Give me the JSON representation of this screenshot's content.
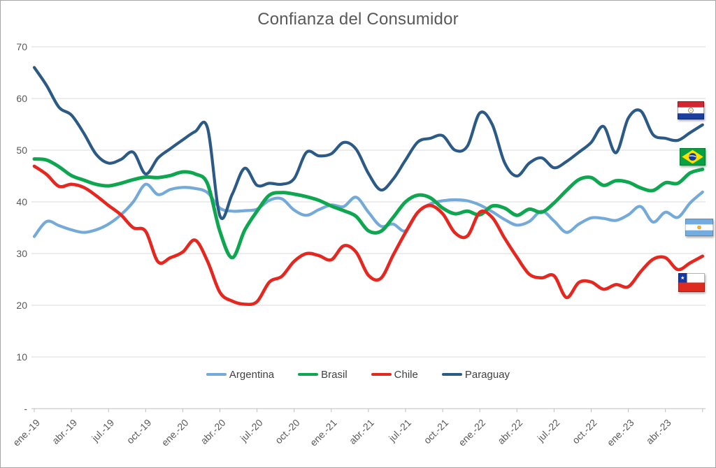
{
  "style": {
    "title_color": "#595959",
    "axis_label_color": "#595959",
    "grid_color": "#d9d9d9",
    "axis_line_color": "#bfbfbf",
    "legend_text_color": "#404040",
    "background": "#ffffff"
  },
  "flags": [
    {
      "name": "paraguay-flag"
    },
    {
      "name": "brazil-flag"
    },
    {
      "name": "argentina-flag"
    },
    {
      "name": "chile-flag"
    }
  ],
  "chart_data": {
    "type": "line",
    "title": "Confianza del Consumidor",
    "smooth": true,
    "grid": "horizontal",
    "legend_position": "bottom-center",
    "x_unit": "month",
    "n_points": 55,
    "x_first_point": "ene.-19",
    "x_tick_every_n_points": 3,
    "x_tick_labels": [
      "ene.-19",
      "abr.-19",
      "jul.-19",
      "oct.-19",
      "ene.-20",
      "abr.-20",
      "jul.-20",
      "oct.-20",
      "ene.-21",
      "abr.-21",
      "jul.-21",
      "oct.-21",
      "ene.-22",
      "abr.-22",
      "jul.-22",
      "oct.-22",
      "ene.-23",
      "abr.-23"
    ],
    "ylim": [
      0,
      70
    ],
    "y_tick_interval": 10,
    "y_tick_labels": [
      "-",
      "10",
      "20",
      "30",
      "40",
      "50",
      "60",
      "70"
    ],
    "series": [
      {
        "name": "Argentina",
        "color": "#74aad9",
        "values": [
          33.3,
          36.2,
          35.4,
          34.6,
          34.1,
          34.6,
          35.7,
          37.5,
          40.0,
          43.4,
          41.4,
          42.4,
          42.8,
          42.6,
          41.8,
          38.8,
          38.2,
          38.3,
          38.6,
          40.3,
          40.6,
          38.4,
          37.4,
          38.5,
          39.4,
          39.1,
          40.9,
          38.0,
          35.3,
          35.7,
          34.4,
          38.0,
          39.6,
          40.2,
          40.4,
          40.2,
          39.4,
          38.1,
          36.6,
          35.5,
          36.2,
          38.2,
          36.3,
          34.1,
          35.7,
          36.9,
          36.8,
          36.4,
          37.5,
          39.1,
          36.1,
          38.0,
          37.0,
          39.8,
          41.9
        ]
      },
      {
        "name": "Brasil",
        "color": "#0ea750",
        "values": [
          48.3,
          48.1,
          46.8,
          45.1,
          44.2,
          43.4,
          43.1,
          43.6,
          44.3,
          44.8,
          44.7,
          45.1,
          45.8,
          45.4,
          43.5,
          34.3,
          29.2,
          34.5,
          38.2,
          41.3,
          41.8,
          41.5,
          41.0,
          40.3,
          39.2,
          38.3,
          37.2,
          34.4,
          34.3,
          37.0,
          40.0,
          41.3,
          40.8,
          38.8,
          37.7,
          38.2,
          37.5,
          39.2,
          38.8,
          37.4,
          38.6,
          38.0,
          39.8,
          42.2,
          44.3,
          44.7,
          43.2,
          44.1,
          43.8,
          42.7,
          42.2,
          43.7,
          43.6,
          45.6,
          46.3
        ]
      },
      {
        "name": "Chile",
        "color": "#e52720",
        "values": [
          46.9,
          45.3,
          43.0,
          43.4,
          42.8,
          41.2,
          39.3,
          37.5,
          35.0,
          34.3,
          28.4,
          29.2,
          30.3,
          32.6,
          28.5,
          22.5,
          20.8,
          20.2,
          20.7,
          24.5,
          25.6,
          28.5,
          30.0,
          29.6,
          28.8,
          31.5,
          30.3,
          25.8,
          25.2,
          29.7,
          34.1,
          38.0,
          39.3,
          37.7,
          34.0,
          33.4,
          38.0,
          37.0,
          33.0,
          29.3,
          26.0,
          25.3,
          25.7,
          21.5,
          24.4,
          24.5,
          23.1,
          24.0,
          23.6,
          26.5,
          28.9,
          29.2,
          26.9,
          28.2,
          29.5
        ]
      },
      {
        "name": "Paraguay",
        "color": "#2c5a87",
        "values": [
          66.0,
          62.5,
          58.3,
          56.8,
          53.3,
          49.2,
          47.5,
          48.2,
          49.6,
          45.4,
          48.5,
          50.3,
          52.0,
          53.6,
          54.3,
          37.3,
          41.5,
          46.5,
          43.2,
          43.6,
          43.4,
          44.5,
          49.6,
          48.9,
          49.3,
          51.5,
          50.2,
          45.5,
          42.3,
          44.4,
          48.1,
          51.6,
          52.3,
          52.8,
          50.0,
          50.8,
          57.2,
          55.0,
          47.6,
          45.0,
          47.5,
          48.5,
          46.6,
          47.8,
          49.6,
          51.5,
          54.6,
          49.5,
          56.2,
          57.6,
          53.0,
          52.3,
          51.9,
          53.4,
          54.9
        ]
      }
    ]
  }
}
